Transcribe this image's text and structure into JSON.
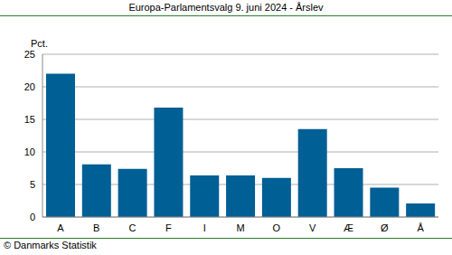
{
  "chart_data": {
    "type": "bar",
    "title": "Europa-Parlamentsvalg 9. juni 2024 - Årslev",
    "ylabel": "Pct.",
    "source": "© Danmarks Statistik",
    "categories": [
      "A",
      "B",
      "C",
      "F",
      "I",
      "M",
      "O",
      "V",
      "Æ",
      "Ø",
      "Å"
    ],
    "values": [
      22.0,
      8.1,
      7.4,
      16.8,
      6.4,
      6.4,
      6.0,
      13.5,
      7.5,
      4.5,
      2.1
    ],
    "color": "#005f95",
    "ylim": [
      0,
      25
    ],
    "yticks": [
      0,
      5,
      10,
      15,
      20,
      25
    ],
    "grid": true
  }
}
